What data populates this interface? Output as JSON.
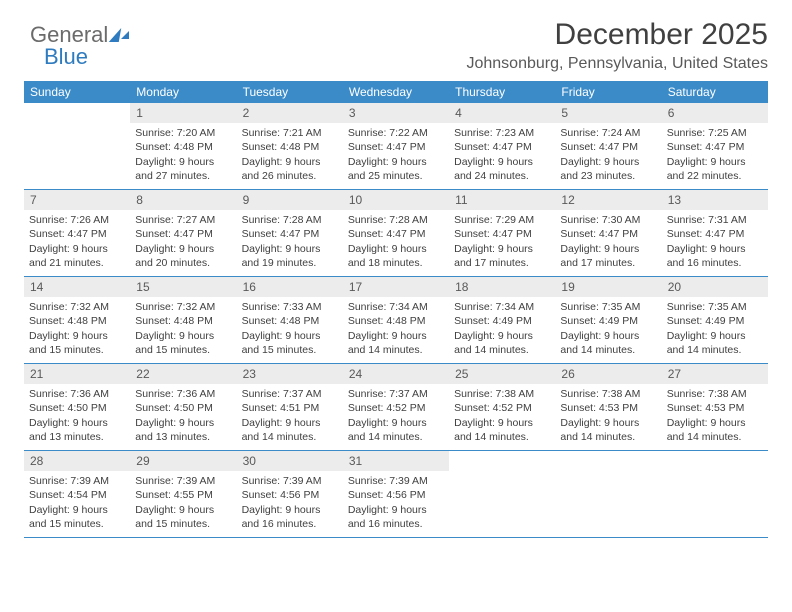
{
  "logo": {
    "part1": "General",
    "part2": "Blue"
  },
  "header": {
    "month_title": "December 2025",
    "location": "Johnsonburg, Pennsylvania, United States"
  },
  "day_labels": [
    "Sunday",
    "Monday",
    "Tuesday",
    "Wednesday",
    "Thursday",
    "Friday",
    "Saturday"
  ],
  "colors": {
    "header_bg": "#3b8bc9",
    "header_text": "#ffffff",
    "daynum_bg": "#ececec",
    "row_border": "#3b8bc9",
    "text": "#404040"
  },
  "weeks": [
    [
      {
        "n": "",
        "sunrise": "",
        "sunset": "",
        "daylight": ""
      },
      {
        "n": "1",
        "sunrise": "Sunrise: 7:20 AM",
        "sunset": "Sunset: 4:48 PM",
        "daylight": "Daylight: 9 hours and 27 minutes."
      },
      {
        "n": "2",
        "sunrise": "Sunrise: 7:21 AM",
        "sunset": "Sunset: 4:48 PM",
        "daylight": "Daylight: 9 hours and 26 minutes."
      },
      {
        "n": "3",
        "sunrise": "Sunrise: 7:22 AM",
        "sunset": "Sunset: 4:47 PM",
        "daylight": "Daylight: 9 hours and 25 minutes."
      },
      {
        "n": "4",
        "sunrise": "Sunrise: 7:23 AM",
        "sunset": "Sunset: 4:47 PM",
        "daylight": "Daylight: 9 hours and 24 minutes."
      },
      {
        "n": "5",
        "sunrise": "Sunrise: 7:24 AM",
        "sunset": "Sunset: 4:47 PM",
        "daylight": "Daylight: 9 hours and 23 minutes."
      },
      {
        "n": "6",
        "sunrise": "Sunrise: 7:25 AM",
        "sunset": "Sunset: 4:47 PM",
        "daylight": "Daylight: 9 hours and 22 minutes."
      }
    ],
    [
      {
        "n": "7",
        "sunrise": "Sunrise: 7:26 AM",
        "sunset": "Sunset: 4:47 PM",
        "daylight": "Daylight: 9 hours and 21 minutes."
      },
      {
        "n": "8",
        "sunrise": "Sunrise: 7:27 AM",
        "sunset": "Sunset: 4:47 PM",
        "daylight": "Daylight: 9 hours and 20 minutes."
      },
      {
        "n": "9",
        "sunrise": "Sunrise: 7:28 AM",
        "sunset": "Sunset: 4:47 PM",
        "daylight": "Daylight: 9 hours and 19 minutes."
      },
      {
        "n": "10",
        "sunrise": "Sunrise: 7:28 AM",
        "sunset": "Sunset: 4:47 PM",
        "daylight": "Daylight: 9 hours and 18 minutes."
      },
      {
        "n": "11",
        "sunrise": "Sunrise: 7:29 AM",
        "sunset": "Sunset: 4:47 PM",
        "daylight": "Daylight: 9 hours and 17 minutes."
      },
      {
        "n": "12",
        "sunrise": "Sunrise: 7:30 AM",
        "sunset": "Sunset: 4:47 PM",
        "daylight": "Daylight: 9 hours and 17 minutes."
      },
      {
        "n": "13",
        "sunrise": "Sunrise: 7:31 AM",
        "sunset": "Sunset: 4:47 PM",
        "daylight": "Daylight: 9 hours and 16 minutes."
      }
    ],
    [
      {
        "n": "14",
        "sunrise": "Sunrise: 7:32 AM",
        "sunset": "Sunset: 4:48 PM",
        "daylight": "Daylight: 9 hours and 15 minutes."
      },
      {
        "n": "15",
        "sunrise": "Sunrise: 7:32 AM",
        "sunset": "Sunset: 4:48 PM",
        "daylight": "Daylight: 9 hours and 15 minutes."
      },
      {
        "n": "16",
        "sunrise": "Sunrise: 7:33 AM",
        "sunset": "Sunset: 4:48 PM",
        "daylight": "Daylight: 9 hours and 15 minutes."
      },
      {
        "n": "17",
        "sunrise": "Sunrise: 7:34 AM",
        "sunset": "Sunset: 4:48 PM",
        "daylight": "Daylight: 9 hours and 14 minutes."
      },
      {
        "n": "18",
        "sunrise": "Sunrise: 7:34 AM",
        "sunset": "Sunset: 4:49 PM",
        "daylight": "Daylight: 9 hours and 14 minutes."
      },
      {
        "n": "19",
        "sunrise": "Sunrise: 7:35 AM",
        "sunset": "Sunset: 4:49 PM",
        "daylight": "Daylight: 9 hours and 14 minutes."
      },
      {
        "n": "20",
        "sunrise": "Sunrise: 7:35 AM",
        "sunset": "Sunset: 4:49 PM",
        "daylight": "Daylight: 9 hours and 14 minutes."
      }
    ],
    [
      {
        "n": "21",
        "sunrise": "Sunrise: 7:36 AM",
        "sunset": "Sunset: 4:50 PM",
        "daylight": "Daylight: 9 hours and 13 minutes."
      },
      {
        "n": "22",
        "sunrise": "Sunrise: 7:36 AM",
        "sunset": "Sunset: 4:50 PM",
        "daylight": "Daylight: 9 hours and 13 minutes."
      },
      {
        "n": "23",
        "sunrise": "Sunrise: 7:37 AM",
        "sunset": "Sunset: 4:51 PM",
        "daylight": "Daylight: 9 hours and 14 minutes."
      },
      {
        "n": "24",
        "sunrise": "Sunrise: 7:37 AM",
        "sunset": "Sunset: 4:52 PM",
        "daylight": "Daylight: 9 hours and 14 minutes."
      },
      {
        "n": "25",
        "sunrise": "Sunrise: 7:38 AM",
        "sunset": "Sunset: 4:52 PM",
        "daylight": "Daylight: 9 hours and 14 minutes."
      },
      {
        "n": "26",
        "sunrise": "Sunrise: 7:38 AM",
        "sunset": "Sunset: 4:53 PM",
        "daylight": "Daylight: 9 hours and 14 minutes."
      },
      {
        "n": "27",
        "sunrise": "Sunrise: 7:38 AM",
        "sunset": "Sunset: 4:53 PM",
        "daylight": "Daylight: 9 hours and 14 minutes."
      }
    ],
    [
      {
        "n": "28",
        "sunrise": "Sunrise: 7:39 AM",
        "sunset": "Sunset: 4:54 PM",
        "daylight": "Daylight: 9 hours and 15 minutes."
      },
      {
        "n": "29",
        "sunrise": "Sunrise: 7:39 AM",
        "sunset": "Sunset: 4:55 PM",
        "daylight": "Daylight: 9 hours and 15 minutes."
      },
      {
        "n": "30",
        "sunrise": "Sunrise: 7:39 AM",
        "sunset": "Sunset: 4:56 PM",
        "daylight": "Daylight: 9 hours and 16 minutes."
      },
      {
        "n": "31",
        "sunrise": "Sunrise: 7:39 AM",
        "sunset": "Sunset: 4:56 PM",
        "daylight": "Daylight: 9 hours and 16 minutes."
      },
      {
        "n": "",
        "sunrise": "",
        "sunset": "",
        "daylight": ""
      },
      {
        "n": "",
        "sunrise": "",
        "sunset": "",
        "daylight": ""
      },
      {
        "n": "",
        "sunrise": "",
        "sunset": "",
        "daylight": ""
      }
    ]
  ]
}
